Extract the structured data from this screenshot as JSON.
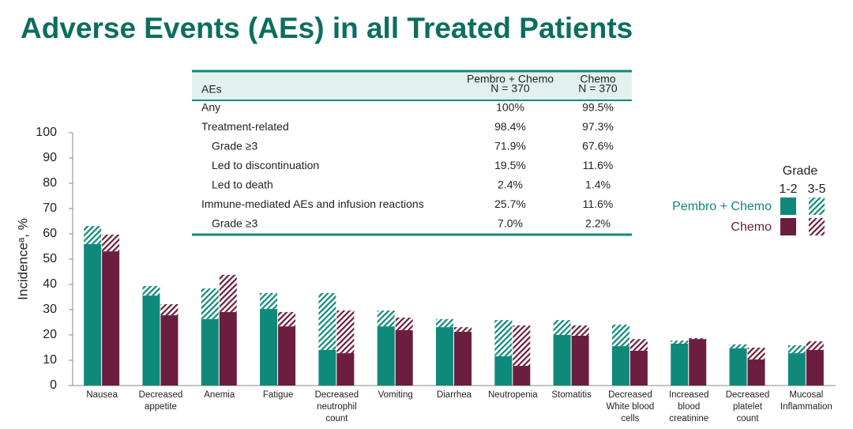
{
  "chart_data": {
    "type": "stacked_hatched_bar",
    "title": "Adverse Events (AEs) in all Treated Patients",
    "ylabel": "Incidenceᵃ, %",
    "categories": [
      "Nausea",
      "Decreased appetite",
      "Anemia",
      "Fatigue",
      "Decreased neutrophil count",
      "Vomiting",
      "Diarrhea",
      "Neutropenia",
      "Stomatitis",
      "Decreased White blood cells",
      "Increased blood creatinine",
      "Decreased platelet count",
      "Mucosal Inflammation"
    ],
    "legend_title": "Grade",
    "grades": [
      "1-2",
      "3-5"
    ],
    "series": [
      {
        "name": "Pembro + Chemo",
        "color": "#0f8a7a",
        "segments": [
          [
            56,
            35.6,
            26.3,
            30.3,
            14.1,
            23.4,
            23.1,
            11.6,
            20,
            15.6,
            16.6,
            14.7,
            12.8
          ],
          [
            7.1,
            3.8,
            12.1,
            6.3,
            22.5,
            6.3,
            3.2,
            14.3,
            5.9,
            8.5,
            1.2,
            1.6,
            3.1
          ]
        ]
      },
      {
        "name": "Chemo",
        "color": "#6b1e3f",
        "segments": [
          [
            53.1,
            27.8,
            29.1,
            23.4,
            12.8,
            21.9,
            21.3,
            7.8,
            19.7,
            13.8,
            18.4,
            10.3,
            14.1
          ],
          [
            6.6,
            4.4,
            14.7,
            5.7,
            16.9,
            5,
            1.8,
            16,
            4.1,
            4.6,
            0.4,
            4.7,
            3.4
          ]
        ]
      }
    ],
    "ylim": [
      0,
      100
    ],
    "yticks": [
      0,
      10,
      20,
      30,
      40,
      50,
      60,
      70,
      80,
      90,
      100
    ]
  },
  "table": {
    "header": [
      "AEs",
      [
        "Pembro + Chemo",
        "N = 370"
      ],
      [
        "Chemo",
        "N = 370"
      ]
    ],
    "rows": [
      {
        "label": "Any",
        "indent": false,
        "cells": [
          "100%",
          "99.5%"
        ]
      },
      {
        "label": "Treatment-related",
        "indent": false,
        "cells": [
          "98.4%",
          "97.3%"
        ]
      },
      {
        "label": "Grade ≥3",
        "indent": true,
        "cells": [
          "71.9%",
          "67.6%"
        ]
      },
      {
        "label": "Led to discontinuation",
        "indent": true,
        "cells": [
          "19.5%",
          "11.6%"
        ]
      },
      {
        "label": "Led to death",
        "indent": true,
        "cells": [
          "2.4%",
          "1.4%"
        ]
      },
      {
        "label": "Immune-mediated AEs and infusion reactions",
        "indent": false,
        "cells": [
          "25.7%",
          "11.6%"
        ]
      },
      {
        "label": "Grade ≥3",
        "indent": true,
        "cells": [
          "7.0%",
          "2.2%"
        ]
      }
    ]
  }
}
